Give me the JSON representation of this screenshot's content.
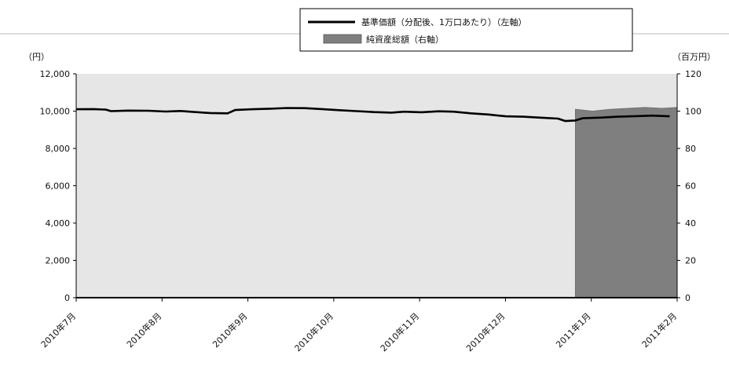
{
  "chart_data": {
    "type": "line+area",
    "y_left": {
      "unit_label": "（円）",
      "ylim": [
        0,
        12000
      ],
      "ticks": [
        "0",
        "2,000",
        "4,000",
        "6,000",
        "8,000",
        "10,000",
        "12,000"
      ]
    },
    "y_right": {
      "unit_label": "（百万円）",
      "ylim": [
        0,
        120
      ],
      "ticks": [
        "0",
        "20",
        "40",
        "60",
        "80",
        "100",
        "120"
      ]
    },
    "x_tick_labels": [
      "2010年7月",
      "2010年8月",
      "2010年9月",
      "2010年10月",
      "2010年11月",
      "2010年12月",
      "2011年1月",
      "2011年2月"
    ],
    "x_range": [
      "2010-07-01",
      "2011-02-28"
    ],
    "grid": false,
    "legend_position": "top-center",
    "series": [
      {
        "name": "基準価額（分配後、1万口あたり）（左軸）",
        "type": "line",
        "axis": "left",
        "color": "#000000",
        "points": [
          [
            "2010-07-01",
            10100
          ],
          [
            "2010-07-08",
            10110
          ],
          [
            "2010-07-13",
            10080
          ],
          [
            "2010-07-15",
            10000
          ],
          [
            "2010-07-22",
            10030
          ],
          [
            "2010-07-30",
            10020
          ],
          [
            "2010-08-06",
            9980
          ],
          [
            "2010-08-12",
            10010
          ],
          [
            "2010-08-18",
            9950
          ],
          [
            "2010-08-24",
            9900
          ],
          [
            "2010-08-31",
            9880
          ],
          [
            "2010-09-03",
            10060
          ],
          [
            "2010-09-10",
            10100
          ],
          [
            "2010-09-17",
            10130
          ],
          [
            "2010-09-24",
            10170
          ],
          [
            "2010-10-01",
            10160
          ],
          [
            "2010-10-08",
            10110
          ],
          [
            "2010-10-15",
            10050
          ],
          [
            "2010-10-22",
            10000
          ],
          [
            "2010-10-29",
            9950
          ],
          [
            "2010-11-05",
            9920
          ],
          [
            "2010-11-10",
            9970
          ],
          [
            "2010-11-17",
            9940
          ],
          [
            "2010-11-24",
            9990
          ],
          [
            "2010-11-30",
            9970
          ],
          [
            "2010-12-07",
            9880
          ],
          [
            "2010-12-14",
            9820
          ],
          [
            "2010-12-21",
            9720
          ],
          [
            "2010-12-28",
            9700
          ],
          [
            "2011-01-04",
            9650
          ],
          [
            "2011-01-11",
            9600
          ],
          [
            "2011-01-14",
            9470
          ],
          [
            "2011-01-18",
            9500
          ],
          [
            "2011-01-21",
            9620
          ],
          [
            "2011-01-28",
            9650
          ],
          [
            "2011-02-04",
            9700
          ],
          [
            "2011-02-11",
            9730
          ],
          [
            "2011-02-18",
            9760
          ],
          [
            "2011-02-25",
            9720
          ]
        ]
      },
      {
        "name": "純資産総額（右軸）",
        "type": "area",
        "axis": "right",
        "color": "#7f7f7f",
        "points": [
          [
            "2011-01-18",
            101
          ],
          [
            "2011-01-25",
            100
          ],
          [
            "2011-02-01",
            101
          ],
          [
            "2011-02-08",
            101.5
          ],
          [
            "2011-02-15",
            102
          ],
          [
            "2011-02-22",
            101.5
          ],
          [
            "2011-02-28",
            102
          ]
        ]
      }
    ]
  }
}
